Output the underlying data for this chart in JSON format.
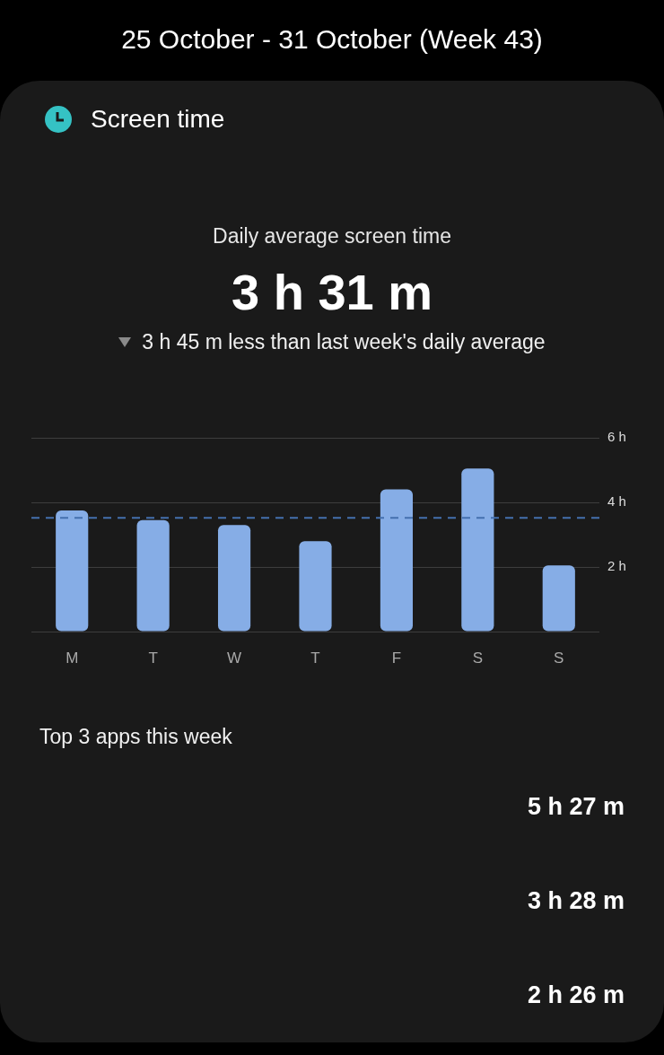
{
  "chart_data": {
    "type": "bar",
    "title": "25 October - 31 October (Week 43)",
    "subtitle": "Screen time",
    "categories": [
      "M",
      "T",
      "W",
      "T",
      "F",
      "S",
      "S"
    ],
    "values": [
      3.75,
      3.45,
      3.3,
      2.8,
      4.4,
      5.05,
      2.05
    ],
    "color": "#86ade6",
    "ylim": [
      0,
      6
    ],
    "yticks": [
      {
        "value": 0,
        "label": null
      },
      {
        "value": 2,
        "label": "2 h"
      },
      {
        "value": 4,
        "label": "4 h"
      },
      {
        "value": 6,
        "label": "6 h"
      }
    ],
    "grid": "y",
    "ref_lines": [
      {
        "axis": "y",
        "value": 3.52,
        "color": "#4470ae",
        "line_style": "dashed"
      }
    ],
    "annotations": [
      "Daily average screen time",
      "3 h 31 m",
      "3 h 45 m less than last week's daily average",
      "Top 3 apps this week",
      "5 h 27 m",
      "3 h 28 m",
      "2 h 26 m"
    ]
  }
}
